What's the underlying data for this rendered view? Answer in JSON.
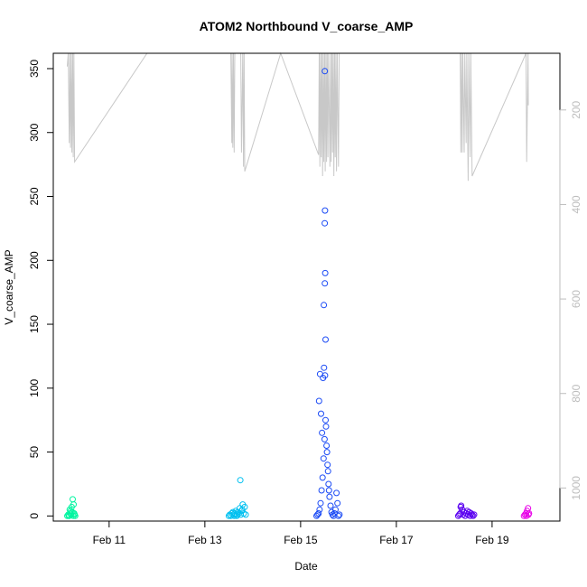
{
  "chart_data": {
    "type": "scatter",
    "title": "ATOM2 Northbound V_coarse_AMP",
    "xlabel": "Date",
    "ylabel": "V_coarse_AMP",
    "xlim": [
      "2021-02-09T20:00",
      "2021-02-20T10:00"
    ],
    "ylim": [
      -4,
      362
    ],
    "x_ticks": [
      {
        "value": "2021-02-11",
        "label": "Feb 11"
      },
      {
        "value": "2021-02-13",
        "label": "Feb 13"
      },
      {
        "value": "2021-02-15",
        "label": "Feb 15"
      },
      {
        "value": "2021-02-17",
        "label": "Feb 17"
      },
      {
        "value": "2021-02-19",
        "label": "Feb 19"
      }
    ],
    "y_ticks": [
      0,
      50,
      100,
      150,
      200,
      250,
      300,
      350
    ],
    "right_axis": {
      "ylim": [
        1070,
        80
      ],
      "reversed": true,
      "ticks": [
        200,
        400,
        600,
        800,
        1000
      ],
      "color": "#bdbdbd"
    },
    "background_line": {
      "color": "#c8c8c8",
      "points": [
        [
          "2021-02-10T03:00",
          108
        ],
        [
          "2021-02-10T03:30",
          80
        ],
        [
          "2021-02-10T04:00",
          270
        ],
        [
          "2021-02-10T04:20",
          80
        ],
        [
          "2021-02-10T04:40",
          280
        ],
        [
          "2021-02-10T05:00",
          80
        ],
        [
          "2021-02-10T05:20",
          290
        ],
        [
          "2021-02-10T05:40",
          80
        ],
        [
          "2021-02-10T06:00",
          300
        ],
        [
          "2021-02-10T06:20",
          80
        ],
        [
          "2021-02-10T06:40",
          310
        ],
        [
          "2021-02-11T19:00",
          80
        ],
        [
          "2021-02-13T13:00",
          80
        ],
        [
          "2021-02-13T13:30",
          270
        ],
        [
          "2021-02-13T13:40",
          80
        ],
        [
          "2021-02-13T14:00",
          280
        ],
        [
          "2021-02-13T14:20",
          80
        ],
        [
          "2021-02-13T14:40",
          290
        ],
        [
          "2021-02-13T15:00",
          80
        ],
        [
          "2021-02-13T18:00",
          80
        ],
        [
          "2021-02-13T18:20",
          290
        ],
        [
          "2021-02-13T19:00",
          80
        ],
        [
          "2021-02-13T19:20",
          320
        ],
        [
          "2021-02-13T19:40",
          80
        ],
        [
          "2021-02-13T20:00",
          330
        ],
        [
          "2021-02-14T14:00",
          80
        ],
        [
          "2021-02-15T09:00",
          295
        ],
        [
          "2021-02-15T09:20",
          80
        ],
        [
          "2021-02-15T09:40",
          320
        ],
        [
          "2021-02-15T10:00",
          80
        ],
        [
          "2021-02-15T10:20",
          300
        ],
        [
          "2021-02-15T10:40",
          80
        ],
        [
          "2021-02-15T11:00",
          340
        ],
        [
          "2021-02-15T11:20",
          80
        ],
        [
          "2021-02-15T11:40",
          310
        ],
        [
          "2021-02-15T12:00",
          80
        ],
        [
          "2021-02-15T12:20",
          330
        ],
        [
          "2021-02-15T12:40",
          80
        ],
        [
          "2021-02-15T13:00",
          310
        ],
        [
          "2021-02-15T13:20",
          80
        ],
        [
          "2021-02-15T13:40",
          300
        ],
        [
          "2021-02-15T14:00",
          80
        ],
        [
          "2021-02-15T14:40",
          320
        ],
        [
          "2021-02-15T15:00",
          80
        ],
        [
          "2021-02-15T15:20",
          310
        ],
        [
          "2021-02-15T15:40",
          80
        ],
        [
          "2021-02-15T16:00",
          290
        ],
        [
          "2021-02-15T16:20",
          80
        ],
        [
          "2021-02-15T16:40",
          340
        ],
        [
          "2021-02-15T17:00",
          80
        ],
        [
          "2021-02-15T17:20",
          300
        ],
        [
          "2021-02-15T17:40",
          80
        ],
        [
          "2021-02-15T18:00",
          330
        ],
        [
          "2021-02-15T18:20",
          80
        ],
        [
          "2021-02-15T19:00",
          320
        ],
        [
          "2021-02-15T19:20",
          80
        ],
        [
          "2021-02-18T08:00",
          80
        ],
        [
          "2021-02-18T08:20",
          290
        ],
        [
          "2021-02-18T08:40",
          80
        ],
        [
          "2021-02-18T09:00",
          290
        ],
        [
          "2021-02-18T09:20",
          80
        ],
        [
          "2021-02-18T10:00",
          290
        ],
        [
          "2021-02-18T10:20",
          80
        ],
        [
          "2021-02-18T11:00",
          270
        ],
        [
          "2021-02-18T11:20",
          80
        ],
        [
          "2021-02-18T12:00",
          350
        ],
        [
          "2021-02-18T12:20",
          80
        ],
        [
          "2021-02-18T13:00",
          300
        ],
        [
          "2021-02-18T13:20",
          80
        ],
        [
          "2021-02-18T14:00",
          340
        ],
        [
          "2021-02-19T17:00",
          80
        ],
        [
          "2021-02-19T17:20",
          310
        ],
        [
          "2021-02-19T18:00",
          80
        ],
        [
          "2021-02-19T18:10",
          190
        ]
      ]
    },
    "series": [
      {
        "color": "#00f5a0",
        "points": [
          [
            "2021-02-10T03:00",
            0
          ],
          [
            "2021-02-10T03:30",
            1
          ],
          [
            "2021-02-10T04:00",
            0
          ],
          [
            "2021-02-10T04:30",
            2
          ],
          [
            "2021-02-10T05:00",
            1
          ],
          [
            "2021-02-10T05:30",
            3
          ],
          [
            "2021-02-10T06:00",
            0
          ],
          [
            "2021-02-10T06:30",
            2
          ],
          [
            "2021-02-10T04:15",
            5
          ],
          [
            "2021-02-10T05:15",
            7
          ],
          [
            "2021-02-10T05:45",
            13
          ],
          [
            "2021-02-10T06:10",
            9
          ],
          [
            "2021-02-10T06:40",
            1
          ],
          [
            "2021-02-10T07:00",
            0
          ],
          [
            "2021-02-10T03:45",
            0
          ],
          [
            "2021-02-10T04:45",
            4
          ]
        ]
      },
      {
        "color": "#00c0f0",
        "points": [
          [
            "2021-02-13T12:00",
            0
          ],
          [
            "2021-02-13T12:30",
            1
          ],
          [
            "2021-02-13T13:00",
            0
          ],
          [
            "2021-02-13T13:30",
            2
          ],
          [
            "2021-02-13T14:00",
            3
          ],
          [
            "2021-02-13T14:30",
            1
          ],
          [
            "2021-02-13T15:00",
            2
          ],
          [
            "2021-02-13T15:30",
            4
          ],
          [
            "2021-02-13T16:00",
            0
          ],
          [
            "2021-02-13T16:30",
            3
          ],
          [
            "2021-02-13T17:00",
            2
          ],
          [
            "2021-02-13T17:30",
            6
          ],
          [
            "2021-02-13T18:00",
            1
          ],
          [
            "2021-02-13T18:30",
            4
          ],
          [
            "2021-02-13T19:00",
            9
          ],
          [
            "2021-02-13T19:30",
            2
          ],
          [
            "2021-02-13T20:00",
            7
          ],
          [
            "2021-02-13T20:30",
            1
          ],
          [
            "2021-02-13T17:45",
            28
          ],
          [
            "2021-02-13T18:45",
            5
          ],
          [
            "2021-02-13T14:45",
            0
          ],
          [
            "2021-02-13T16:15",
            1
          ]
        ]
      },
      {
        "color": "#1a4af5",
        "points": [
          [
            "2021-02-15T08:00",
            0
          ],
          [
            "2021-02-15T08:30",
            1
          ],
          [
            "2021-02-15T09:00",
            2
          ],
          [
            "2021-02-15T09:30",
            5
          ],
          [
            "2021-02-15T10:00",
            10
          ],
          [
            "2021-02-15T10:30",
            20
          ],
          [
            "2021-02-15T11:00",
            30
          ],
          [
            "2021-02-15T11:30",
            45
          ],
          [
            "2021-02-15T12:00",
            60
          ],
          [
            "2021-02-15T12:30",
            75
          ],
          [
            "2021-02-15T13:00",
            55
          ],
          [
            "2021-02-15T13:30",
            40
          ],
          [
            "2021-02-15T14:00",
            25
          ],
          [
            "2021-02-15T14:30",
            15
          ],
          [
            "2021-02-15T15:00",
            8
          ],
          [
            "2021-02-15T15:30",
            3
          ],
          [
            "2021-02-15T16:00",
            1
          ],
          [
            "2021-02-15T16:30",
            0
          ],
          [
            "2021-02-15T17:00",
            2
          ],
          [
            "2021-02-15T17:30",
            5
          ],
          [
            "2021-02-15T18:00",
            18
          ],
          [
            "2021-02-15T18:30",
            10
          ],
          [
            "2021-02-15T19:00",
            0
          ],
          [
            "2021-02-15T19:30",
            1
          ],
          [
            "2021-02-15T09:15",
            90
          ],
          [
            "2021-02-15T09:45",
            111
          ],
          [
            "2021-02-15T10:15",
            80
          ],
          [
            "2021-02-15T10:45",
            65
          ],
          [
            "2021-02-15T11:15",
            108
          ],
          [
            "2021-02-15T11:45",
            116
          ],
          [
            "2021-02-15T12:15",
            110
          ],
          [
            "2021-02-15T12:45",
            70
          ],
          [
            "2021-02-15T11:40",
            165
          ],
          [
            "2021-02-15T12:10",
            182
          ],
          [
            "2021-02-15T12:20",
            190
          ],
          [
            "2021-02-15T12:05",
            229
          ],
          [
            "2021-02-15T12:15",
            239
          ],
          [
            "2021-02-15T12:30",
            138
          ],
          [
            "2021-02-15T12:10",
            348
          ],
          [
            "2021-02-15T13:15",
            50
          ],
          [
            "2021-02-15T13:45",
            35
          ],
          [
            "2021-02-15T14:15",
            20
          ]
        ]
      },
      {
        "color": "#5a00f0",
        "points": [
          [
            "2021-02-18T07:00",
            0
          ],
          [
            "2021-02-18T07:30",
            1
          ],
          [
            "2021-02-18T08:00",
            2
          ],
          [
            "2021-02-18T08:30",
            8
          ],
          [
            "2021-02-18T09:00",
            5
          ],
          [
            "2021-02-18T09:30",
            1
          ],
          [
            "2021-02-18T10:00",
            3
          ],
          [
            "2021-02-18T10:30",
            0
          ],
          [
            "2021-02-18T11:00",
            2
          ],
          [
            "2021-02-18T11:30",
            4
          ],
          [
            "2021-02-18T12:00",
            1
          ],
          [
            "2021-02-18T12:30",
            3
          ],
          [
            "2021-02-18T13:00",
            0
          ],
          [
            "2021-02-18T13:30",
            2
          ],
          [
            "2021-02-18T14:00",
            1
          ],
          [
            "2021-02-18T14:30",
            0
          ],
          [
            "2021-02-18T15:00",
            1
          ],
          [
            "2021-02-18T08:15",
            7
          ]
        ]
      },
      {
        "color": "#e800e8",
        "points": [
          [
            "2021-02-19T16:00",
            0
          ],
          [
            "2021-02-19T16:30",
            1
          ],
          [
            "2021-02-19T17:00",
            2
          ],
          [
            "2021-02-19T17:30",
            4
          ],
          [
            "2021-02-19T18:00",
            6
          ],
          [
            "2021-02-19T18:30",
            2
          ],
          [
            "2021-02-19T17:15",
            0
          ],
          [
            "2021-02-19T18:15",
            1
          ]
        ]
      }
    ]
  }
}
